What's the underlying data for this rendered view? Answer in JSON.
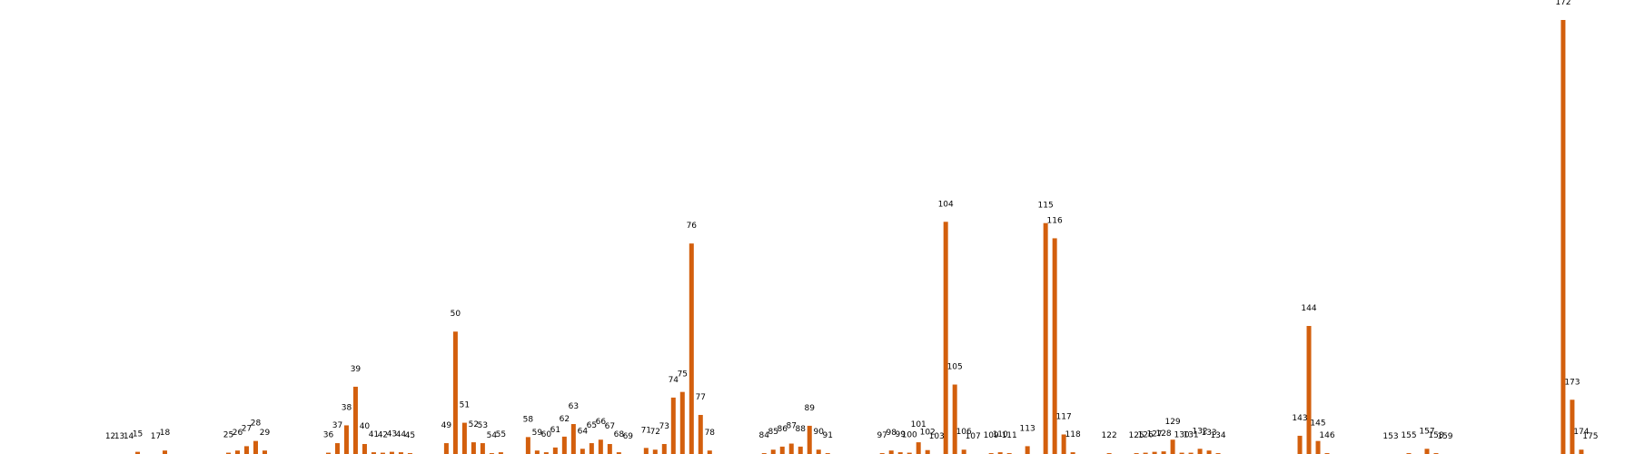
{
  "colors": {
    "bar": "#d35f0d",
    "label": "#000000",
    "background": "#ffffff"
  },
  "chart_data": {
    "type": "bar",
    "title": "",
    "xlabel": "",
    "ylabel": "",
    "grid": false,
    "legend": "none",
    "xlim": [
      0,
      180
    ],
    "ylim": [
      0,
      1.05
    ],
    "bars": [
      {
        "x": 12,
        "label": "12",
        "value": 0
      },
      {
        "x": 13,
        "label": "13",
        "value": 0
      },
      {
        "x": 14,
        "label": "14",
        "value": 0
      },
      {
        "x": 15,
        "label": "15",
        "value": 0.005
      },
      {
        "x": 17,
        "label": "17",
        "value": 0
      },
      {
        "x": 18,
        "label": "18",
        "value": 0.008
      },
      {
        "x": 25,
        "label": "25",
        "value": 0.003
      },
      {
        "x": 26,
        "label": "26",
        "value": 0.008
      },
      {
        "x": 27,
        "label": "27",
        "value": 0.018
      },
      {
        "x": 28,
        "label": "28",
        "value": 0.03
      },
      {
        "x": 29,
        "label": "29",
        "value": 0.008
      },
      {
        "x": 36,
        "label": "36",
        "value": 0.003
      },
      {
        "x": 37,
        "label": "37",
        "value": 0.025
      },
      {
        "x": 38,
        "label": "38",
        "value": 0.066
      },
      {
        "x": 39,
        "label": "39",
        "value": 0.155
      },
      {
        "x": 40,
        "label": "40",
        "value": 0.023
      },
      {
        "x": 41,
        "label": "41",
        "value": 0.004
      },
      {
        "x": 42,
        "label": "42",
        "value": 0.003
      },
      {
        "x": 43,
        "label": "43",
        "value": 0.005
      },
      {
        "x": 44,
        "label": "44",
        "value": 0.004
      },
      {
        "x": 45,
        "label": "45",
        "value": 0.002
      },
      {
        "x": 49,
        "label": "49",
        "value": 0.025
      },
      {
        "x": 50,
        "label": "50",
        "value": 0.282
      },
      {
        "x": 51,
        "label": "51",
        "value": 0.072
      },
      {
        "x": 52,
        "label": "52",
        "value": 0.027
      },
      {
        "x": 53,
        "label": "53",
        "value": 0.025
      },
      {
        "x": 54,
        "label": "54",
        "value": 0.002
      },
      {
        "x": 55,
        "label": "55",
        "value": 0.004
      },
      {
        "x": 58,
        "label": "58",
        "value": 0.039
      },
      {
        "x": 59,
        "label": "59",
        "value": 0.008
      },
      {
        "x": 60,
        "label": "60",
        "value": 0.004
      },
      {
        "x": 61,
        "label": "61",
        "value": 0.015
      },
      {
        "x": 62,
        "label": "62",
        "value": 0.04
      },
      {
        "x": 63,
        "label": "63",
        "value": 0.069
      },
      {
        "x": 64,
        "label": "64",
        "value": 0.012
      },
      {
        "x": 65,
        "label": "65",
        "value": 0.025
      },
      {
        "x": 66,
        "label": "66",
        "value": 0.033
      },
      {
        "x": 67,
        "label": "67",
        "value": 0.023
      },
      {
        "x": 68,
        "label": "68",
        "value": 0.004
      },
      {
        "x": 69,
        "label": "69",
        "value": 0
      },
      {
        "x": 71,
        "label": "71",
        "value": 0.014
      },
      {
        "x": 72,
        "label": "72",
        "value": 0.01
      },
      {
        "x": 73,
        "label": "73",
        "value": 0.023
      },
      {
        "x": 74,
        "label": "74",
        "value": 0.13
      },
      {
        "x": 75,
        "label": "75",
        "value": 0.143
      },
      {
        "x": 76,
        "label": "76",
        "value": 0.485
      },
      {
        "x": 77,
        "label": "77",
        "value": 0.09
      },
      {
        "x": 78,
        "label": "78",
        "value": 0.008
      },
      {
        "x": 84,
        "label": "84",
        "value": 0.002
      },
      {
        "x": 85,
        "label": "85",
        "value": 0.01
      },
      {
        "x": 86,
        "label": "86",
        "value": 0.017
      },
      {
        "x": 87,
        "label": "87",
        "value": 0.024
      },
      {
        "x": 88,
        "label": "88",
        "value": 0.017
      },
      {
        "x": 89,
        "label": "89",
        "value": 0.065
      },
      {
        "x": 90,
        "label": "90",
        "value": 0.01
      },
      {
        "x": 91,
        "label": "91",
        "value": 0.002
      },
      {
        "x": 97,
        "label": "97",
        "value": 0.002
      },
      {
        "x": 98,
        "label": "98",
        "value": 0.008
      },
      {
        "x": 99,
        "label": "99",
        "value": 0.004
      },
      {
        "x": 100,
        "label": "100",
        "value": 0.003
      },
      {
        "x": 101,
        "label": "101",
        "value": 0.027
      },
      {
        "x": 102,
        "label": "102",
        "value": 0.009
      },
      {
        "x": 103,
        "label": "103",
        "value": 0
      },
      {
        "x": 104,
        "label": "104",
        "value": 0.535
      },
      {
        "x": 105,
        "label": "105",
        "value": 0.16
      },
      {
        "x": 106,
        "label": "106",
        "value": 0.01
      },
      {
        "x": 107,
        "label": "107",
        "value": 0
      },
      {
        "x": 109,
        "label": "109",
        "value": 0.002
      },
      {
        "x": 110,
        "label": "110",
        "value": 0.004
      },
      {
        "x": 111,
        "label": "111",
        "value": 0.002
      },
      {
        "x": 113,
        "label": "113",
        "value": 0.018
      },
      {
        "x": 115,
        "label": "115",
        "value": 0.532
      },
      {
        "x": 116,
        "label": "116",
        "value": 0.497
      },
      {
        "x": 117,
        "label": "117",
        "value": 0.045
      },
      {
        "x": 118,
        "label": "118",
        "value": 0.004
      },
      {
        "x": 122,
        "label": "122",
        "value": 0.002
      },
      {
        "x": 125,
        "label": "125",
        "value": 0.002
      },
      {
        "x": 126,
        "label": "126",
        "value": 0.003
      },
      {
        "x": 127,
        "label": "127",
        "value": 0.005
      },
      {
        "x": 128,
        "label": "128",
        "value": 0.006
      },
      {
        "x": 129,
        "label": "129",
        "value": 0.033
      },
      {
        "x": 130,
        "label": "130",
        "value": 0.003
      },
      {
        "x": 131,
        "label": "131",
        "value": 0.003
      },
      {
        "x": 132,
        "label": "132",
        "value": 0.012
      },
      {
        "x": 133,
        "label": "133",
        "value": 0.008
      },
      {
        "x": 134,
        "label": "134",
        "value": 0.002
      },
      {
        "x": 143,
        "label": "143",
        "value": 0.042
      },
      {
        "x": 144,
        "label": "144",
        "value": 0.295
      },
      {
        "x": 145,
        "label": "145",
        "value": 0.03
      },
      {
        "x": 146,
        "label": "146",
        "value": 0.002
      },
      {
        "x": 153,
        "label": "153",
        "value": 0
      },
      {
        "x": 155,
        "label": "155",
        "value": 0.002
      },
      {
        "x": 157,
        "label": "157",
        "value": 0.012
      },
      {
        "x": 158,
        "label": "158",
        "value": 0.002
      },
      {
        "x": 159,
        "label": "159",
        "value": 0
      },
      {
        "x": 172,
        "label": "172",
        "value": 1.0
      },
      {
        "x": 173,
        "label": "173",
        "value": 0.125
      },
      {
        "x": 174,
        "label": "174",
        "value": 0.01
      },
      {
        "x": 175,
        "label": "175",
        "value": 0
      }
    ]
  }
}
